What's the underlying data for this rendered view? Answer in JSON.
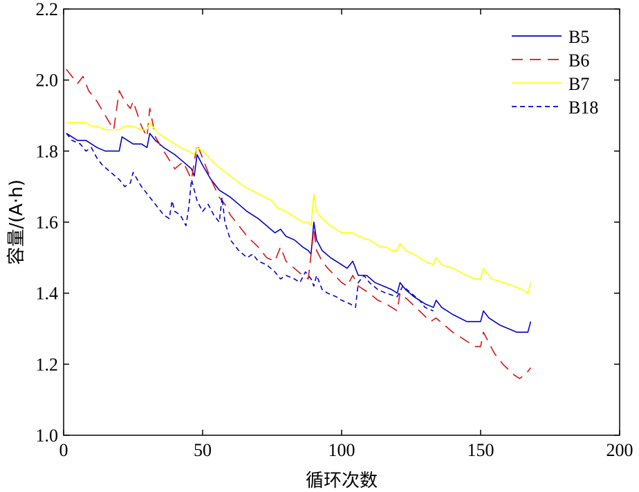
{
  "chart_data": {
    "type": "line",
    "xlabel": "循环次数",
    "ylabel": "容量/(A·h)",
    "xlim": [
      0,
      200
    ],
    "ylim": [
      1.0,
      2.2
    ],
    "xticks": [
      "0",
      "50",
      "100",
      "150",
      "200"
    ],
    "yticks": [
      "1.0",
      "1.2",
      "1.4",
      "1.6",
      "1.8",
      "2.0",
      "2.2"
    ],
    "grid": false,
    "legend_position": "top-right",
    "series": [
      {
        "name": "B5",
        "color": "#0000cc",
        "dash": "solid",
        "x": [
          1,
          3,
          5,
          8,
          10,
          12,
          15,
          18,
          20,
          21,
          23,
          25,
          28,
          30,
          31,
          33,
          36,
          40,
          43,
          46,
          47,
          48,
          50,
          53,
          56,
          60,
          63,
          66,
          70,
          73,
          76,
          78,
          80,
          83,
          86,
          88,
          89,
          90,
          91,
          93,
          96,
          100,
          102,
          104,
          106,
          109,
          112,
          115,
          118,
          120,
          121,
          123,
          126,
          130,
          133,
          134,
          136,
          140,
          145,
          148,
          150,
          151,
          153,
          157,
          160,
          163,
          165,
          167,
          168
        ],
        "y": [
          1.85,
          1.84,
          1.83,
          1.83,
          1.82,
          1.81,
          1.8,
          1.8,
          1.8,
          1.84,
          1.83,
          1.82,
          1.82,
          1.81,
          1.85,
          1.83,
          1.81,
          1.79,
          1.77,
          1.75,
          1.73,
          1.79,
          1.76,
          1.72,
          1.69,
          1.67,
          1.65,
          1.63,
          1.61,
          1.59,
          1.57,
          1.58,
          1.56,
          1.55,
          1.53,
          1.52,
          1.51,
          1.6,
          1.55,
          1.52,
          1.5,
          1.48,
          1.47,
          1.49,
          1.45,
          1.45,
          1.43,
          1.42,
          1.41,
          1.4,
          1.43,
          1.41,
          1.39,
          1.37,
          1.36,
          1.38,
          1.36,
          1.34,
          1.32,
          1.32,
          1.32,
          1.35,
          1.33,
          1.31,
          1.3,
          1.29,
          1.29,
          1.29,
          1.32
        ]
      },
      {
        "name": "B6",
        "color": "#dd1111",
        "dash": "16 10",
        "x": [
          1,
          3,
          5,
          7,
          9,
          12,
          15,
          18,
          20,
          22,
          24,
          25,
          28,
          30,
          31,
          33,
          36,
          40,
          43,
          46,
          48,
          50,
          53,
          56,
          58,
          60,
          63,
          66,
          70,
          73,
          76,
          78,
          80,
          83,
          86,
          88,
          90,
          91,
          93,
          95,
          100,
          102,
          104,
          106,
          110,
          113,
          116,
          120,
          121,
          124,
          128,
          132,
          134,
          137,
          140,
          144,
          148,
          150,
          151,
          153,
          155,
          158,
          162,
          164,
          166,
          168
        ],
        "y": [
          2.03,
          2.01,
          1.99,
          2.01,
          1.97,
          1.94,
          1.9,
          1.86,
          1.97,
          1.94,
          1.92,
          1.94,
          1.87,
          1.84,
          1.92,
          1.84,
          1.8,
          1.75,
          1.77,
          1.72,
          1.82,
          1.78,
          1.72,
          1.67,
          1.65,
          1.62,
          1.59,
          1.56,
          1.53,
          1.5,
          1.49,
          1.53,
          1.49,
          1.47,
          1.45,
          1.44,
          1.58,
          1.52,
          1.49,
          1.47,
          1.43,
          1.42,
          1.45,
          1.42,
          1.4,
          1.38,
          1.37,
          1.35,
          1.4,
          1.38,
          1.35,
          1.32,
          1.33,
          1.31,
          1.29,
          1.27,
          1.25,
          1.25,
          1.29,
          1.26,
          1.23,
          1.2,
          1.17,
          1.16,
          1.17,
          1.19
        ]
      },
      {
        "name": "B7",
        "color": "#ffff00",
        "dash": "solid",
        "x": [
          1,
          5,
          8,
          10,
          12,
          15,
          18,
          20,
          22,
          25,
          28,
          30,
          31,
          34,
          38,
          42,
          45,
          47,
          48,
          50,
          55,
          60,
          65,
          70,
          75,
          77,
          80,
          84,
          86,
          88,
          89,
          90,
          91,
          93,
          96,
          100,
          104,
          106,
          110,
          114,
          116,
          118,
          120,
          121,
          123,
          126,
          130,
          133,
          134,
          136,
          140,
          145,
          148,
          150,
          151,
          154,
          158,
          162,
          165,
          167,
          168
        ],
        "y": [
          1.88,
          1.88,
          1.88,
          1.87,
          1.87,
          1.86,
          1.86,
          1.86,
          1.87,
          1.87,
          1.86,
          1.86,
          1.88,
          1.85,
          1.83,
          1.81,
          1.8,
          1.79,
          1.81,
          1.8,
          1.76,
          1.73,
          1.7,
          1.68,
          1.66,
          1.64,
          1.63,
          1.61,
          1.6,
          1.6,
          1.59,
          1.68,
          1.63,
          1.61,
          1.59,
          1.57,
          1.57,
          1.56,
          1.55,
          1.53,
          1.53,
          1.52,
          1.52,
          1.54,
          1.52,
          1.51,
          1.49,
          1.48,
          1.5,
          1.48,
          1.47,
          1.45,
          1.44,
          1.44,
          1.47,
          1.44,
          1.43,
          1.42,
          1.41,
          1.4,
          1.43
        ]
      },
      {
        "name": "B18",
        "color": "#0000cc",
        "dash": "7 5",
        "x": [
          1,
          3,
          6,
          8,
          10,
          12,
          14,
          17,
          20,
          22,
          24,
          25,
          28,
          30,
          33,
          36,
          38,
          39,
          40,
          42,
          44,
          45,
          46,
          48,
          50,
          52,
          54,
          56,
          57,
          58,
          60,
          63,
          66,
          68,
          70,
          73,
          76,
          78,
          80,
          83,
          85,
          87,
          88,
          89,
          90,
          91,
          93,
          95,
          98,
          100,
          103,
          105,
          106,
          108,
          110,
          113,
          116,
          120,
          122,
          125,
          128,
          130,
          133
        ],
        "y": [
          1.85,
          1.83,
          1.82,
          1.8,
          1.81,
          1.78,
          1.76,
          1.74,
          1.72,
          1.7,
          1.71,
          1.74,
          1.7,
          1.68,
          1.65,
          1.62,
          1.61,
          1.66,
          1.63,
          1.62,
          1.59,
          1.64,
          1.72,
          1.66,
          1.63,
          1.65,
          1.62,
          1.6,
          1.67,
          1.6,
          1.55,
          1.52,
          1.5,
          1.51,
          1.49,
          1.48,
          1.46,
          1.44,
          1.45,
          1.44,
          1.43,
          1.46,
          1.45,
          1.44,
          1.42,
          1.45,
          1.41,
          1.4,
          1.39,
          1.38,
          1.37,
          1.36,
          1.43,
          1.45,
          1.43,
          1.41,
          1.4,
          1.39,
          1.42,
          1.4,
          1.38,
          1.36,
          1.35
        ]
      }
    ]
  }
}
